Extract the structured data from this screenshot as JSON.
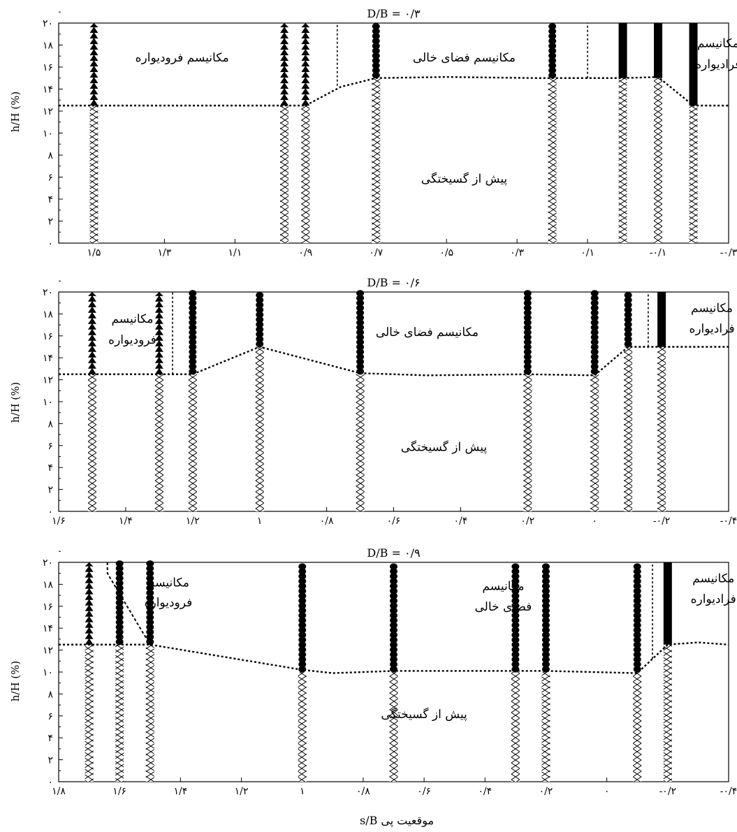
{
  "chart_data": {
    "xlabel": "موقعیت پی s/B",
    "ylabel": "h/H (%)",
    "panels": [
      {
        "type": "scatter",
        "title": "D/B = ۰/۳",
        "xlim": [
          1.6,
          -0.3
        ],
        "ylim": [
          0,
          20
        ],
        "x_ticks": [
          1.5,
          1.3,
          1.1,
          0.9,
          0.7,
          0.5,
          0.3,
          0.1,
          -0.1,
          -0.3
        ],
        "x_tick_labels": [
          "۱/۵",
          "۱/۳",
          "۱/۱",
          "۰/۹",
          "۰/۷",
          "۰/۵",
          "۰/۳",
          "۰/۱",
          "-۰/۱",
          "-۰/۳"
        ],
        "y_ticks": [
          0,
          2,
          4,
          6,
          8,
          10,
          12,
          14,
          16,
          18,
          20
        ],
        "y_tick_labels": [
          "۰",
          "۲",
          "۴",
          "۶",
          "۸",
          "۱۰",
          "۱۲",
          "۱۴",
          "۱۶",
          "۱۸",
          "۲۰"
        ],
        "columns": [
          {
            "x": 1.5,
            "failure_h": 12.5,
            "mechanism": "subsidence"
          },
          {
            "x": 0.96,
            "failure_h": 12.5,
            "mechanism": "subsidence"
          },
          {
            "x": 0.9,
            "failure_h": 12.5,
            "mechanism": "subsidence"
          },
          {
            "x": 0.7,
            "failure_h": 15,
            "mechanism": "void"
          },
          {
            "x": 0.2,
            "failure_h": 15,
            "mechanism": "void"
          },
          {
            "x": -0.0,
            "failure_h": 15,
            "mechanism": "heave"
          },
          {
            "x": -0.1,
            "failure_h": 15,
            "mechanism": "heave"
          },
          {
            "x": -0.2,
            "failure_h": 12.5,
            "mechanism": "heave"
          }
        ],
        "boundary": {
          "x": [
            1.6,
            1.25,
            0.9,
            0.8,
            0.7,
            0.5,
            0.25,
            0.0,
            -0.1,
            -0.2,
            -0.3
          ],
          "y": [
            12.5,
            12.5,
            12.5,
            14.2,
            15,
            15.1,
            15,
            15,
            15.1,
            12.5,
            12.5
          ]
        },
        "dividers": [
          {
            "x": 0.81,
            "from": 14.3,
            "to": 20
          },
          {
            "x": 0.1,
            "from": 15,
            "to": 20
          }
        ],
        "annotations": [
          {
            "text": "مکانیسم فرودیواره",
            "x": 1.25,
            "y": 16.5,
            "anchor": "middle"
          },
          {
            "text": "مکانیسم فضای خالی",
            "x": 0.45,
            "y": 16.5,
            "anchor": "middle"
          },
          {
            "text": "مکانیسم",
            "x": -0.27,
            "y": 17.8,
            "anchor": "middle"
          },
          {
            "text": "فرادیواره",
            "x": -0.27,
            "y": 15.9,
            "anchor": "middle"
          },
          {
            "text": "پیش از گسیختگی",
            "x": 0.45,
            "y": 5.5,
            "anchor": "middle"
          }
        ]
      },
      {
        "type": "scatter",
        "title": "D/B = ۰/۶",
        "xlim": [
          1.6,
          -0.4
        ],
        "ylim": [
          0,
          20
        ],
        "x_ticks": [
          1.6,
          1.4,
          1.2,
          1.0,
          0.8,
          0.6,
          0.4,
          0.2,
          0.0,
          -0.2,
          -0.4
        ],
        "x_tick_labels": [
          "۱/۶",
          "۱/۴",
          "۱/۲",
          "۱",
          "۰/۸",
          "۰/۶",
          "۰/۴",
          "۰/۲",
          "۰",
          "-۰/۲",
          "-۰/۴"
        ],
        "y_ticks": [
          0,
          2,
          4,
          6,
          8,
          10,
          12,
          14,
          16,
          18,
          20
        ],
        "y_tick_labels": [
          "۰",
          "۲",
          "۴",
          "۶",
          "۸",
          "۱۰",
          "۱۲",
          "۱۴",
          "۱۶",
          "۱۸",
          "۲۰"
        ],
        "columns": [
          {
            "x": 1.5,
            "failure_h": 12.5,
            "mechanism": "subsidence"
          },
          {
            "x": 1.3,
            "failure_h": 12.5,
            "mechanism": "subsidence"
          },
          {
            "x": 1.2,
            "failure_h": 12.5,
            "mechanism": "void"
          },
          {
            "x": 1.0,
            "failure_h": 15,
            "mechanism": "void"
          },
          {
            "x": 0.7,
            "failure_h": 12.5,
            "mechanism": "void"
          },
          {
            "x": 0.2,
            "failure_h": 12.5,
            "mechanism": "void"
          },
          {
            "x": 0.0,
            "failure_h": 12.5,
            "mechanism": "void"
          },
          {
            "x": -0.1,
            "failure_h": 15,
            "mechanism": "void"
          },
          {
            "x": -0.2,
            "failure_h": 15,
            "mechanism": "heave"
          }
        ],
        "boundary": {
          "x": [
            1.6,
            1.3,
            1.2,
            1.0,
            0.7,
            0.5,
            0.2,
            0.0,
            -0.1,
            -0.4
          ],
          "y": [
            12.5,
            12.5,
            12.5,
            15,
            12.6,
            12.4,
            12.5,
            12.4,
            15,
            15
          ]
        },
        "dividers": [
          {
            "x": 1.26,
            "from": 12.5,
            "to": 20
          },
          {
            "x": -0.16,
            "from": 15,
            "to": 20
          }
        ],
        "annotations": [
          {
            "text": "مکانیسم",
            "x": 1.38,
            "y": 17.2,
            "anchor": "middle"
          },
          {
            "text": "فرودیواره",
            "x": 1.38,
            "y": 15.3,
            "anchor": "middle"
          },
          {
            "text": "مکانیسم فضای خالی",
            "x": 0.5,
            "y": 16.0,
            "anchor": "middle"
          },
          {
            "text": "مکانیسم",
            "x": -0.35,
            "y": 18.2,
            "anchor": "middle"
          },
          {
            "text": "فرادیواره",
            "x": -0.35,
            "y": 16.3,
            "anchor": "middle"
          },
          {
            "text": "پیش از گسیختگی",
            "x": 0.45,
            "y": 5.5,
            "anchor": "middle"
          }
        ]
      },
      {
        "type": "scatter",
        "title": "D/B = ۰/۹",
        "xlim": [
          1.8,
          -0.4
        ],
        "ylim": [
          0,
          20
        ],
        "x_ticks": [
          1.8,
          1.6,
          1.4,
          1.2,
          1.0,
          0.8,
          0.6,
          0.4,
          0.2,
          0.0,
          -0.2,
          -0.4
        ],
        "x_tick_labels": [
          "۱/۸",
          "۱/۶",
          "۱/۴",
          "۱/۲",
          "۱",
          "۰/۸",
          "۰/۶",
          "۰/۴",
          "۰/۲",
          "۰",
          "-۰/۲",
          "-۰/۴"
        ],
        "y_ticks": [
          0,
          2,
          4,
          6,
          8,
          10,
          12,
          14,
          16,
          18,
          20
        ],
        "y_tick_labels": [
          "۰",
          "۲",
          "۴",
          "۶",
          "۸",
          "۱۰",
          "۱۲",
          "۱۴",
          "۱۶",
          "۱۸",
          "۲۰"
        ],
        "columns": [
          {
            "x": 1.7,
            "failure_h": 12.5,
            "mechanism": "subsidence"
          },
          {
            "x": 1.6,
            "failure_h": 12.5,
            "mechanism": "void"
          },
          {
            "x": 1.5,
            "failure_h": 12.5,
            "mechanism": "void"
          },
          {
            "x": 1.0,
            "failure_h": 10,
            "mechanism": "void"
          },
          {
            "x": 0.7,
            "failure_h": 10,
            "mechanism": "void"
          },
          {
            "x": 0.3,
            "failure_h": 10,
            "mechanism": "void"
          },
          {
            "x": 0.2,
            "failure_h": 10,
            "mechanism": "void"
          },
          {
            "x": -0.1,
            "failure_h": 10,
            "mechanism": "void"
          },
          {
            "x": -0.2,
            "failure_h": 12.5,
            "mechanism": "heave"
          }
        ],
        "boundary": {
          "x": [
            1.8,
            1.5,
            1.0,
            0.9,
            0.7,
            0.2,
            -0.1,
            -0.15,
            -0.2,
            -0.3,
            -0.4
          ],
          "y": [
            12.5,
            12.5,
            10.2,
            9.9,
            10.1,
            10.1,
            9.9,
            11.2,
            12.5,
            12.7,
            12.5
          ]
        },
        "dividers": [
          {
            "x": -0.15,
            "from": 11.2,
            "to": 20
          }
        ],
        "extra_dashed": {
          "x": [
            1.64,
            1.64,
            1.5
          ],
          "y": [
            20,
            19,
            12.5
          ]
        },
        "annotations": [
          {
            "text": "مکانیسم",
            "x": 1.44,
            "y": 17.8,
            "anchor": "middle"
          },
          {
            "text": "فرودیواره",
            "x": 1.44,
            "y": 16.0,
            "anchor": "middle"
          },
          {
            "text": "مکانیسم",
            "x": 0.34,
            "y": 17.5,
            "anchor": "middle"
          },
          {
            "text": "فضای خالی",
            "x": 0.34,
            "y": 15.6,
            "anchor": "middle"
          },
          {
            "text": "مکانیسم",
            "x": -0.35,
            "y": 18.2,
            "anchor": "middle"
          },
          {
            "text": "فرادیواره",
            "x": -0.35,
            "y": 16.3,
            "anchor": "middle"
          },
          {
            "text": "پیش از گسیختگی",
            "x": 0.6,
            "y": 5.8,
            "anchor": "middle"
          }
        ]
      }
    ]
  }
}
